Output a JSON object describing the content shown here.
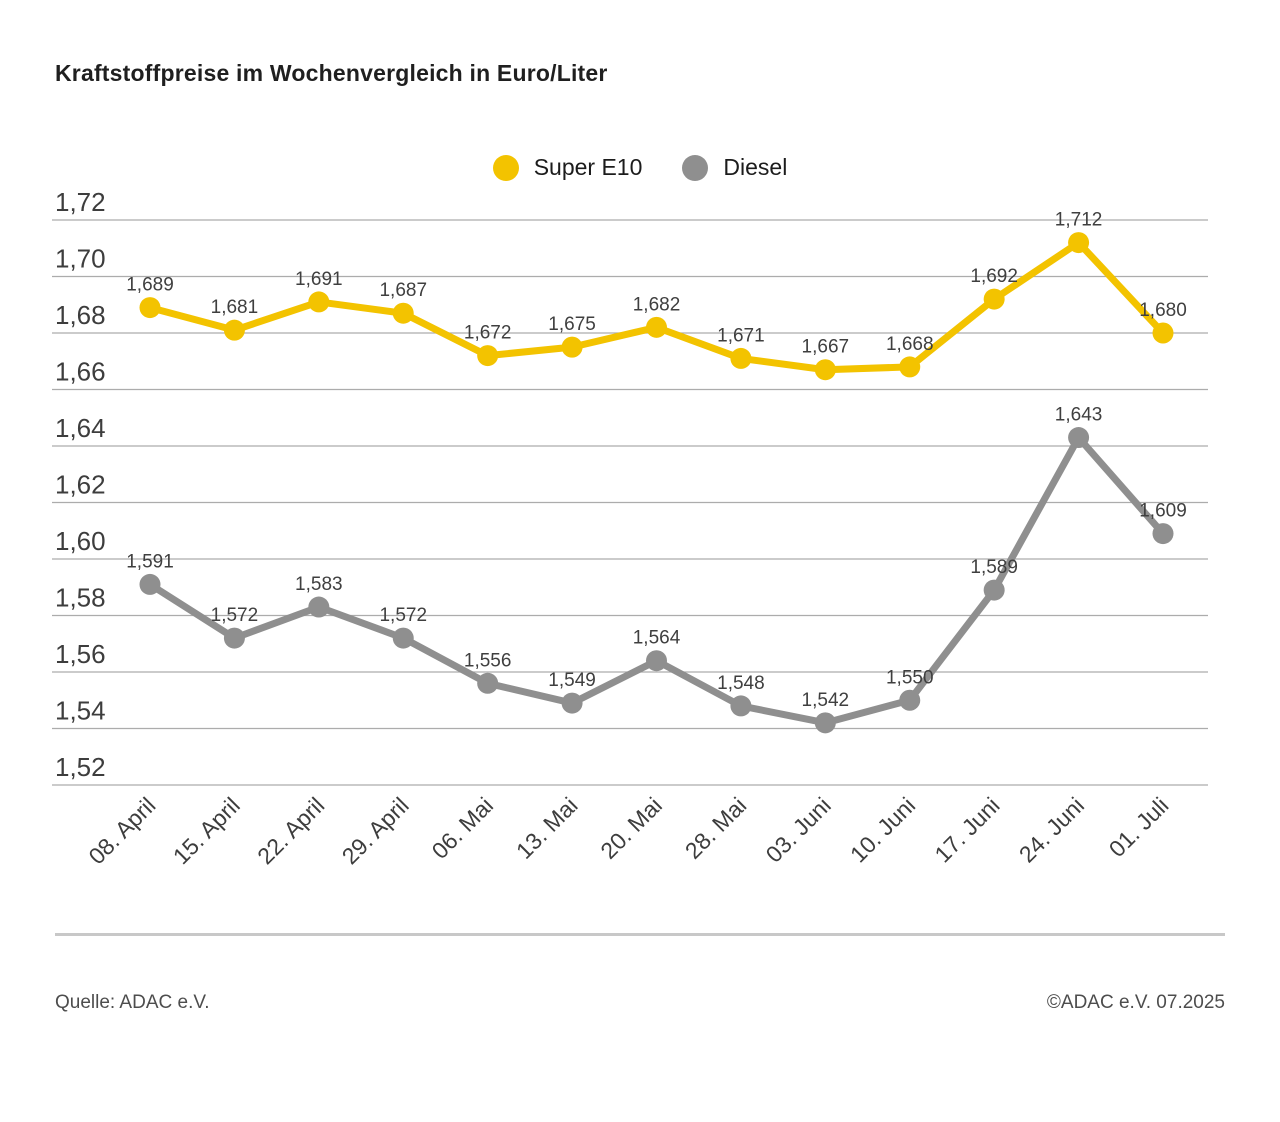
{
  "title": "Kraftstoffpreise im Wochenvergleich in Euro/Liter",
  "chart_data": {
    "type": "line",
    "title": "Kraftstoffpreise im Wochenvergleich in Euro/Liter",
    "categories": [
      "08. April",
      "15. April",
      "22. April",
      "29. April",
      "06. Mai",
      "13. Mai",
      "20. Mai",
      "28. Mai",
      "03. Juni",
      "10. Juni",
      "17. Juni",
      "24. Juni",
      "01. Juli"
    ],
    "series": [
      {
        "name": "Super E10",
        "color": "#F3C300",
        "values": [
          1.689,
          1.681,
          1.691,
          1.687,
          1.672,
          1.675,
          1.682,
          1.671,
          1.667,
          1.668,
          1.692,
          1.712,
          1.68
        ]
      },
      {
        "name": "Diesel",
        "color": "#8F8F8F",
        "values": [
          1.591,
          1.572,
          1.583,
          1.572,
          1.556,
          1.549,
          1.564,
          1.548,
          1.542,
          1.55,
          1.589,
          1.643,
          1.609
        ]
      }
    ],
    "ylim": [
      1.52,
      1.72
    ],
    "ytick_step": 0.02,
    "ytick_labels": [
      "1,72",
      "1,70",
      "1,68",
      "1,66",
      "1,64",
      "1,62",
      "1,60",
      "1,58",
      "1,56",
      "1,54",
      "1,52"
    ],
    "grid": true,
    "legend_position": "top-center",
    "number_format": "german-comma",
    "xlabel": "",
    "ylabel": ""
  },
  "footer": {
    "source": "Quelle: ADAC e.V.",
    "copyright": "©ADAC e.V. 07.2025"
  },
  "colors": {
    "super_e10": "#F3C300",
    "diesel": "#8F8F8F",
    "grid": "#ACACAC",
    "axis_text": "#3D3D3D",
    "data_label": "#3F3F3F",
    "divider": "#C8C8C8",
    "footer_text": "#4D4D4D",
    "title_text": "#1F1F1F"
  }
}
